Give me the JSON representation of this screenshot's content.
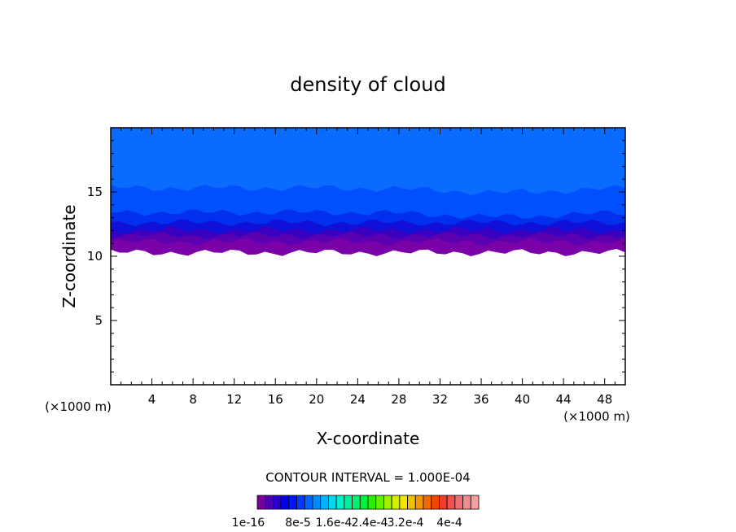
{
  "chart_data": {
    "type": "heatmap",
    "title": "density of cloud",
    "xlabel": "X-coordinate",
    "ylabel": "Z-coordinate",
    "x_unit_label": "(×1000 m)",
    "x_unit_label_right": "(×1000 m)",
    "xlim": [
      0,
      50
    ],
    "ylim": [
      0,
      20
    ],
    "x_ticks": [
      4,
      8,
      12,
      16,
      20,
      24,
      28,
      32,
      36,
      40,
      44,
      48
    ],
    "y_ticks": [
      5,
      10,
      15
    ],
    "contour_interval_label": "CONTOUR INTERVAL = 1.000E-04",
    "colorbar_labels": [
      "1e-16",
      "8e-5",
      "1.6e-4",
      "2.4e-4",
      "3.2e-4",
      "4e-4"
    ],
    "colorbar_colors": [
      "#7a00a0",
      "#4b00b4",
      "#2a00c8",
      "#0000e0",
      "#0014ff",
      "#003cff",
      "#0064ff",
      "#008cff",
      "#00b4ff",
      "#00d8f0",
      "#00f0c8",
      "#00f09c",
      "#00f070",
      "#00f040",
      "#28f000",
      "#64f000",
      "#a0f000",
      "#d2f000",
      "#f0e600",
      "#f0c000",
      "#f09600",
      "#f06c00",
      "#f04600",
      "#f03c28",
      "#f05050",
      "#f06e6e",
      "#f08c8c",
      "#f4a0a0"
    ],
    "layers": [
      {
        "name": "band-top",
        "color": "#0a6cff",
        "z_bottom": 15.3,
        "z_top": 20
      },
      {
        "name": "band-2",
        "color": "#0050ff",
        "z_bottom": 13.4,
        "z_top": 15.3
      },
      {
        "name": "band-3",
        "color": "#0030ee",
        "z_bottom": 12.6,
        "z_top": 13.4
      },
      {
        "name": "band-4",
        "color": "#1010d8",
        "z_bottom": 12.0,
        "z_top": 12.6
      },
      {
        "name": "band-5",
        "color": "#3a00c0",
        "z_bottom": 11.6,
        "z_top": 12.0
      },
      {
        "name": "band-6",
        "color": "#5a00b0",
        "z_bottom": 11.1,
        "z_top": 11.6
      },
      {
        "name": "band-bottom",
        "color": "#7a00a8",
        "z_bottom": 10.3,
        "z_top": 11.1
      }
    ]
  }
}
